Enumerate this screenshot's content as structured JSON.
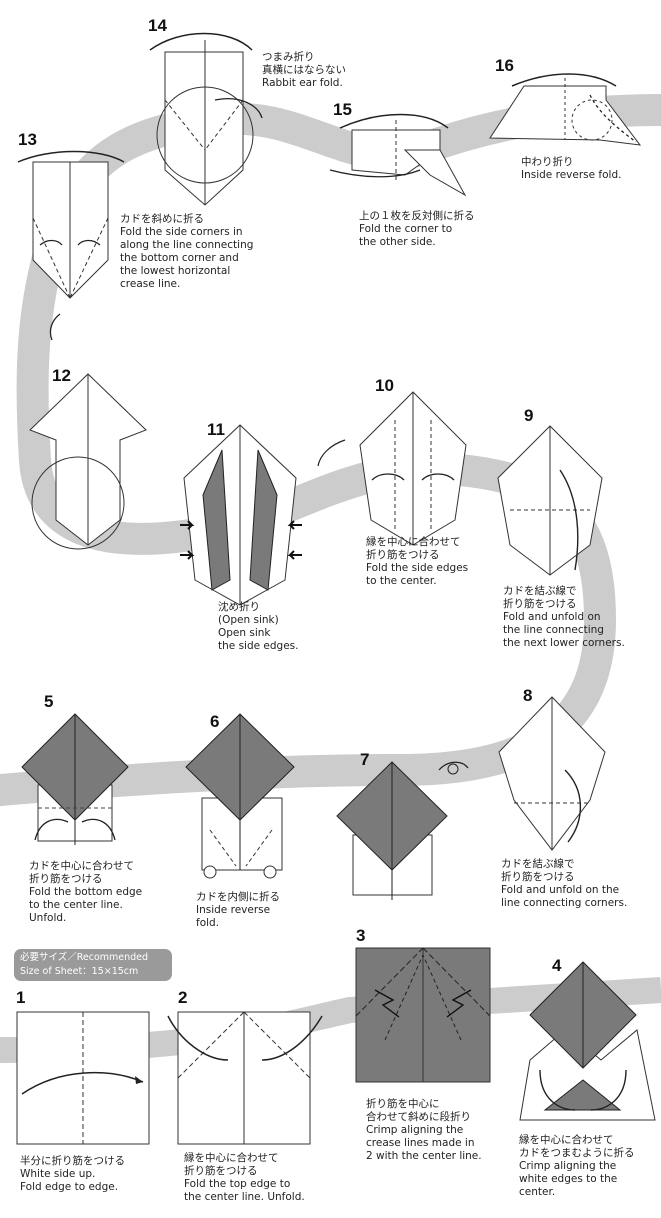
{
  "colors": {
    "band": "#cccccc",
    "paper": "#ffffff",
    "colored": "#7a7a7a",
    "ink": "#222222"
  },
  "recommended": {
    "line1": "必要サイズ／Recommended",
    "line2": "Size of Sheet：15×15cm"
  },
  "steps": [
    {
      "num": "1",
      "lines": [
        "半分に折り筋をつける",
        "White side up.",
        "Fold edge to edge."
      ]
    },
    {
      "num": "2",
      "lines": [
        "縁を中心に合わせて",
        "折り筋をつける",
        "Fold the top edge to",
        "the center line.  Unfold."
      ]
    },
    {
      "num": "3",
      "lines": [
        "折り筋を中心に",
        "合わせて斜めに段折り",
        "Crimp aligning the",
        "crease lines made in",
        "2 with the center line."
      ]
    },
    {
      "num": "4",
      "lines": [
        "縁を中心に合わせて",
        "カドをつまむように折る",
        "Crimp aligning the",
        "white edges to the",
        "center."
      ]
    },
    {
      "num": "5",
      "lines": [
        "カドを中心に合わせて",
        "折り筋をつける",
        "Fold the bottom edge",
        "to the center line.",
        "Unfold."
      ]
    },
    {
      "num": "6",
      "lines": [
        "カドを内側に折る",
        "Inside reverse",
        "fold."
      ]
    },
    {
      "num": "7",
      "lines": []
    },
    {
      "num": "8",
      "lines": [
        "カドを結ぶ線で",
        "折り筋をつける",
        "Fold and unfold on the",
        "line connecting corners."
      ]
    },
    {
      "num": "9",
      "lines": [
        "カドを結ぶ線で",
        "折り筋をつける",
        "Fold and unfold on",
        "the line connecting",
        "the next lower corners."
      ]
    },
    {
      "num": "10",
      "lines": [
        "縁を中心に合わせて",
        "折り筋をつける",
        "Fold the side edges",
        "to the center."
      ]
    },
    {
      "num": "11",
      "lines": [
        "沈め折り",
        "(Open sink)",
        "Open sink",
        "the side edges."
      ]
    },
    {
      "num": "12",
      "lines": []
    },
    {
      "num": "13",
      "lines": [
        "カドを斜めに折る",
        "Fold the side corners in",
        "along the line connecting",
        "the bottom corner and",
        "the lowest horizontal",
        "crease line."
      ]
    },
    {
      "num": "14",
      "lines": [
        "つまみ折り",
        "真横にはならない",
        "Rabbit ear fold."
      ]
    },
    {
      "num": "15",
      "lines": [
        "上の１枚を反対側に折る",
        "Fold the corner to",
        "the other side."
      ]
    },
    {
      "num": "16",
      "lines": [
        "中わり折り",
        "Inside reverse fold."
      ]
    }
  ]
}
